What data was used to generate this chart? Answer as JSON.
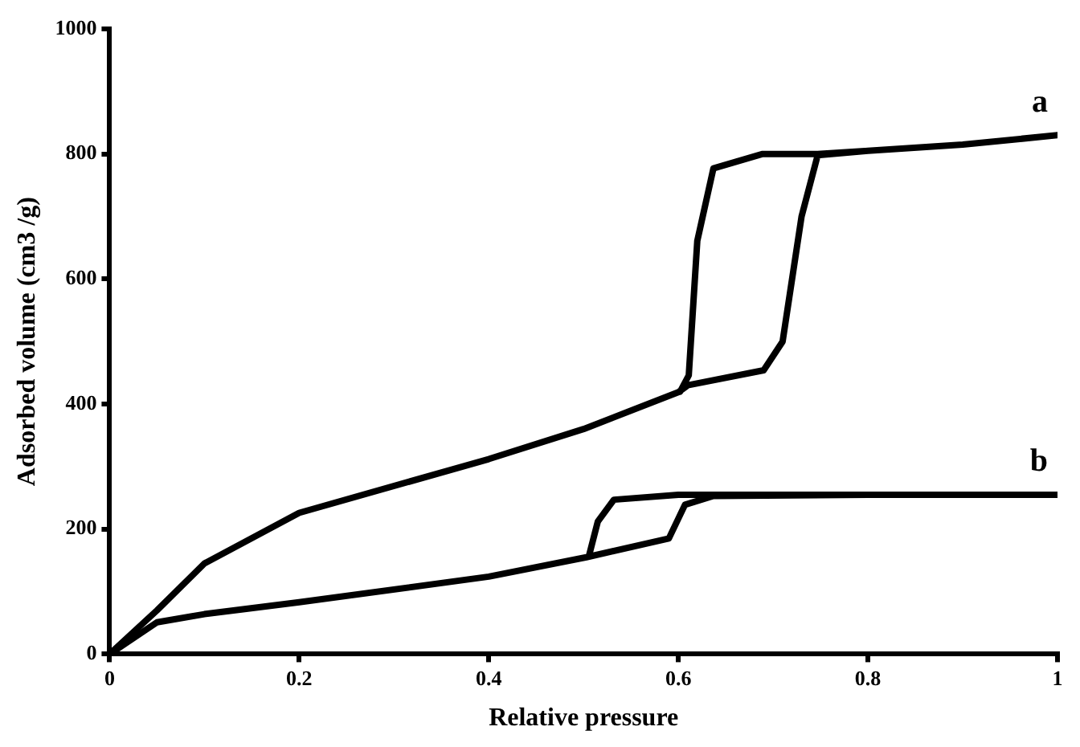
{
  "chart_data": {
    "type": "line",
    "xlabel": "Relative pressure",
    "ylabel": "Adsorbed volume (cm3 /g)",
    "xlim": [
      0,
      1
    ],
    "xticks": [
      0,
      0.2,
      0.4,
      0.6,
      0.8,
      1
    ],
    "ylim": [
      0,
      1000
    ],
    "yticks": [
      0,
      200,
      400,
      600,
      800,
      1000
    ],
    "grid": false,
    "legend": false,
    "marker": "none",
    "line_style": "solid",
    "series": [
      {
        "name": "a",
        "color": "#000000",
        "x": [
          0,
          0.05,
          0.1,
          0.2,
          0.4,
          0.5,
          0.6,
          0.61,
          0.69,
          0.71,
          0.73,
          0.747,
          0.8,
          0.9,
          1,
          0.9,
          0.8,
          0.747,
          0.689,
          0.637,
          0.62,
          0.611,
          0.602
        ],
        "values": [
          0,
          70,
          145,
          226,
          312,
          360,
          419,
          430,
          454,
          500,
          700,
          798,
          805,
          815,
          830,
          815,
          805,
          800,
          800,
          777,
          661,
          446,
          420
        ]
      },
      {
        "name": "b",
        "color": "#000000",
        "x": [
          0,
          0.05,
          0.1,
          0.2,
          0.4,
          0.503,
          0.59,
          0.607,
          0.637,
          0.8,
          1,
          0.8,
          0.6,
          0.532,
          0.515,
          0.506
        ],
        "values": [
          0,
          51,
          64,
          83,
          124,
          155,
          185,
          239,
          253,
          255,
          255,
          255,
          255,
          247,
          212,
          159
        ]
      }
    ]
  }
}
